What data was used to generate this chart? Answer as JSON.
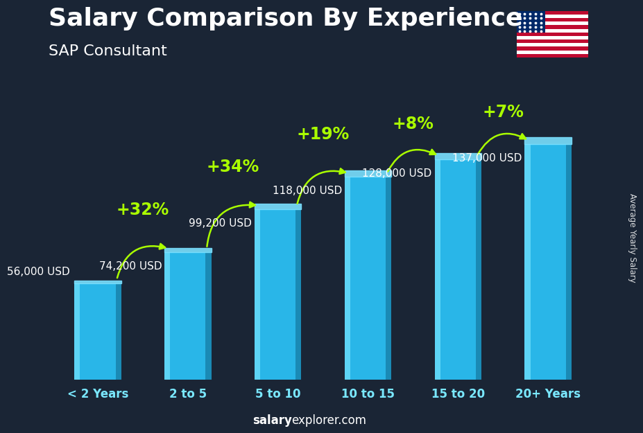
{
  "title": "Salary Comparison By Experience",
  "subtitle": "SAP Consultant",
  "categories": [
    "< 2 Years",
    "2 to 5",
    "5 to 10",
    "10 to 15",
    "15 to 20",
    "20+ Years"
  ],
  "values": [
    56000,
    74200,
    99200,
    118000,
    128000,
    137000
  ],
  "labels": [
    "56,000 USD",
    "74,200 USD",
    "99,200 USD",
    "118,000 USD",
    "128,000 USD",
    "137,000 USD"
  ],
  "pct_changes": [
    "+32%",
    "+34%",
    "+19%",
    "+8%",
    "+7%"
  ],
  "bar_color_main": "#29b6e8",
  "bar_color_light": "#5dd4f5",
  "bar_color_dark": "#1a8ab5",
  "bar_color_top": "#7ae0ff",
  "bg_color": "#1a2535",
  "text_color_white": "#ffffff",
  "text_color_cyan": "#7ae8ff",
  "label_color": "#e0e0e0",
  "pct_color": "#aaff00",
  "arrow_color": "#aaff00",
  "ylabel": "Average Yearly Salary",
  "footer_bold": "salary",
  "footer_regular": "explorer.com",
  "ylim": [
    0,
    155000
  ],
  "bar_bottom": 0,
  "title_fontsize": 26,
  "subtitle_fontsize": 16,
  "category_fontsize": 12,
  "label_fontsize": 11,
  "pct_fontsize": 17,
  "footer_fontsize": 12
}
